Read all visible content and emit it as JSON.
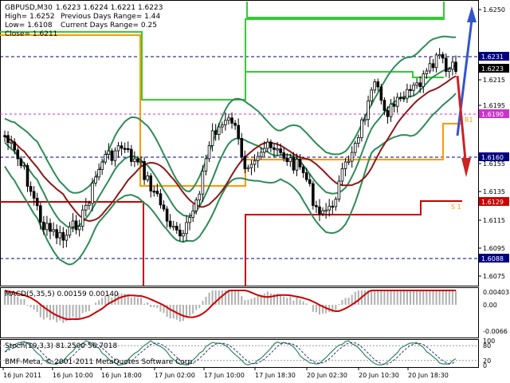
{
  "header": {
    "symbol": "GBPUSD,M30",
    "ohlc": "1.6223 1.6224 1.6221 1.6223",
    "high": "High= 1.6252",
    "low": "Low= 1.6108",
    "close": "Close= 1.6211",
    "prev_range": "Previous Days Range= 1.44",
    "curr_range": "Current Days Range= 0.25"
  },
  "price_axis": {
    "ticks": [
      "1.6250",
      "1.6215",
      "1.6195",
      "1.6155",
      "1.6135",
      "1.6115",
      "1.6095",
      "1.6075"
    ],
    "badges": [
      {
        "label": "1.6231",
        "color": "#000080"
      },
      {
        "label": "1.6223",
        "color": "#000000"
      },
      {
        "label": "1.6190",
        "color": "#cc33cc"
      },
      {
        "label": "1.6160",
        "color": "#000080"
      },
      {
        "label": "1.6129",
        "color": "#cc0000"
      },
      {
        "label": "1.6088",
        "color": "#000080"
      }
    ]
  },
  "pivot_labels": {
    "r1": "R1",
    "s1": "S 1"
  },
  "macd": {
    "title": "MACD(5,35,5) 0.00159 0.00140",
    "ticks": [
      "0.00403",
      "0.00",
      "-0.0066"
    ]
  },
  "stoch": {
    "title": "Stoch(10,3,3) 81.2500 56.7018",
    "ticks": [
      "100",
      "80",
      "20",
      "0"
    ]
  },
  "copyright": "BMF-Meta, © 2001-2011 MetaQuotes Software Corp.",
  "time_axis": [
    "16 Jun 2011",
    "16 Jun 10:00",
    "16 Jun 18:00",
    "17 Jun 02:00",
    "17 Jun 10:00",
    "17 Jun 18:30",
    "20 Jun 02:30",
    "20 Jun 10:30",
    "20 Jun 18:30"
  ],
  "colors": {
    "bull_candle": "#ffffff",
    "bear_candle": "#000000",
    "bollinger": "#2e8b57",
    "ma": "#8b1a1a",
    "daily_high_box": "#33cc33",
    "daily_open_box": "#ff9900",
    "daily_low_box": "#cc0000",
    "macd_line": "#cc0000",
    "macd_hist": "#b0b0b0",
    "stoch_main": "#2e8b57",
    "stoch_signal": "#333399"
  }
}
